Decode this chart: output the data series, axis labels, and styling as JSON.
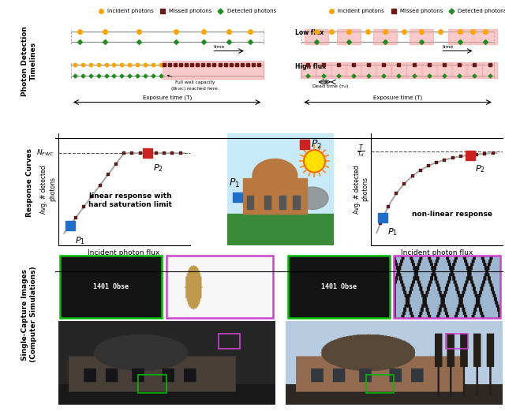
{
  "bg_color": "#ffffff",
  "pink_color": "#f5a0a0",
  "orange_color": "#FFA500",
  "dark_red_color": "#6B1A1A",
  "green_color": "#228B22",
  "blue_color": "#1E6FCC",
  "red_color": "#CC2222",
  "section_labels": [
    "Photon Detection\nTimelines",
    "Response Curves",
    "Single-Capture Images\n(Computer Simulations)"
  ],
  "legend_items": [
    "Incident photons",
    "Missed photons",
    "Detected photons"
  ],
  "exposure_time_label": "Exposure time (T)",
  "time_label": "time",
  "incident_flux_label": "Incident photon flux",
  "avg_detected_label": "Avg. # detected\nphotons",
  "linear_text": "linear response with\nhard saturation limit",
  "nonlinear_text": "non-linear response",
  "nfwc_label": "N_FWC",
  "p1_label": "P1",
  "p2_label": "P2"
}
